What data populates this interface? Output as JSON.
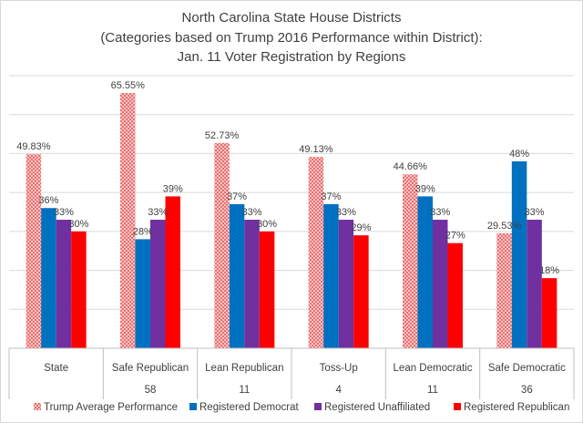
{
  "chart_data": {
    "type": "bar",
    "title_lines": [
      "North Carolina State House Districts",
      "(Categories based on Trump 2016 Performance within District):",
      "Jan. 11 Voter Registration by Regions"
    ],
    "categories": [
      "State",
      "Safe Republican",
      "Lean Republican",
      "Toss-Up",
      "Lean Democratic",
      "Safe Democratic"
    ],
    "category_counts": [
      "",
      "58",
      "11",
      "4",
      "11",
      "36"
    ],
    "ylim": [
      0,
      0.7
    ],
    "grid": true,
    "legend_position": "bottom",
    "series": [
      {
        "name": "Trump Average Performance",
        "color": "#f4a3a3",
        "pattern": "crosshatch",
        "values": [
          0.4983,
          0.6555,
          0.5273,
          0.4913,
          0.4466,
          0.2953
        ],
        "labels": [
          "49.83%",
          "65.55%",
          "52.73%",
          "49.13%",
          "44.66%",
          "29.53%"
        ]
      },
      {
        "name": "Registered Democrat",
        "color": "#0070c0",
        "values": [
          0.36,
          0.28,
          0.37,
          0.37,
          0.39,
          0.48
        ],
        "labels": [
          "36%",
          "28%",
          "37%",
          "37%",
          "39%",
          "48%"
        ]
      },
      {
        "name": "Registered Unaffiliated",
        "color": "#7030a0",
        "values": [
          0.33,
          0.33,
          0.33,
          0.33,
          0.33,
          0.33
        ],
        "labels": [
          "33%",
          "33%",
          "33%",
          "33%",
          "33%",
          "33%"
        ]
      },
      {
        "name": "Registered Republican",
        "color": "#ff0000",
        "values": [
          0.3,
          0.39,
          0.3,
          0.29,
          0.27,
          0.18
        ],
        "labels": [
          "30%",
          "39%",
          "30%",
          "29%",
          "27%",
          "18%"
        ]
      }
    ]
  }
}
